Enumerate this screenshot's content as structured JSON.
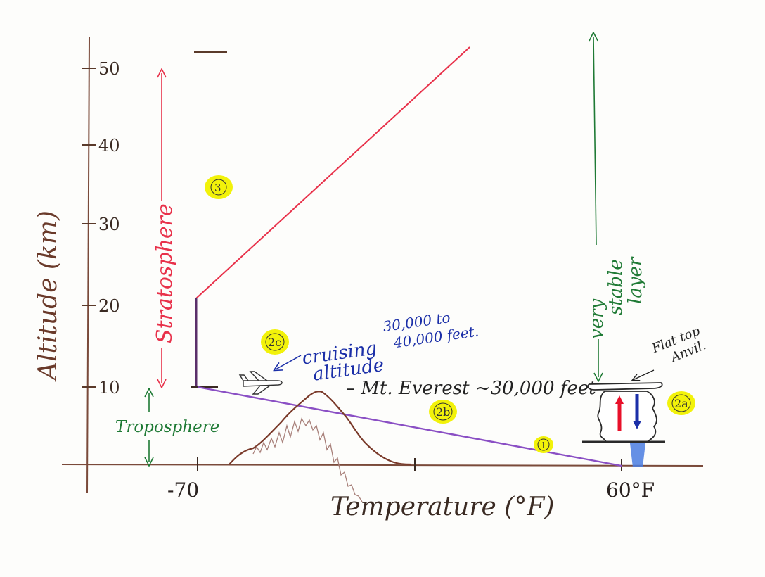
{
  "axes": {
    "ylabel": "Altitude (km)",
    "xlabel": "Temperature (°F)",
    "y_ticks": [
      "50",
      "40",
      "30",
      "20",
      "10"
    ],
    "x_ticks": [
      "-70",
      "60°F"
    ]
  },
  "layers": {
    "stratosphere": "Stratosphere",
    "troposphere": "Troposphere",
    "stable_layer": [
      "very",
      "stable",
      "layer"
    ]
  },
  "annotations": {
    "cruising_line1": "cruising",
    "cruising_line2": "altitude",
    "cruising_range1": "30,000 to",
    "cruising_range2": "40,000 feet.",
    "everest": "– Mt. Everest ~30,000 feet",
    "anvil_line1": "Flat top",
    "anvil_line2": "Anvil."
  },
  "markers": [
    "1",
    "2a",
    "2b",
    "2c",
    "3"
  ],
  "colors": {
    "axis": "#7a4a3a",
    "red": "#e8314a",
    "green": "#1f7a35",
    "blue": "#1b2fa8",
    "purple": "#8a4fc4",
    "marker": "#f2f20a",
    "mountain": "#8a4a36"
  }
}
